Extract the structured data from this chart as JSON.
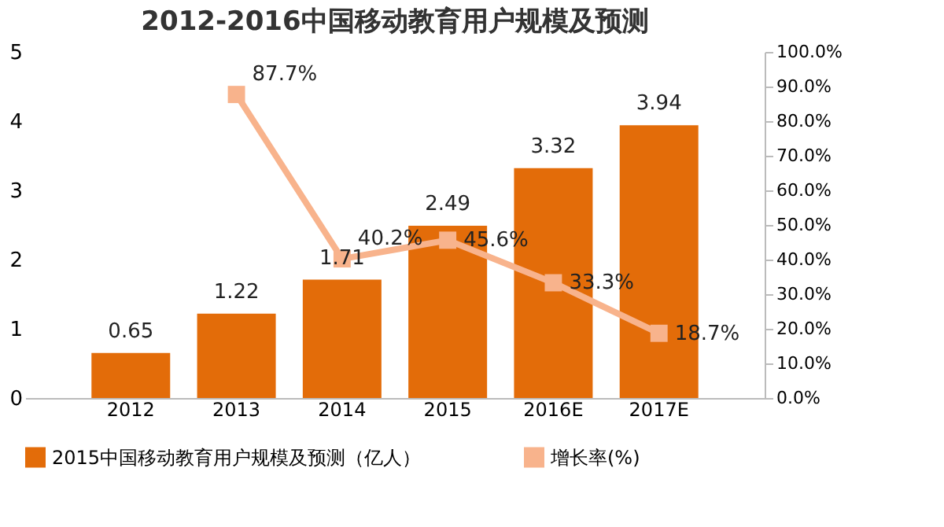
{
  "chart_data": {
    "type": "bar",
    "title": "2012-2016中国移动教育用户规模及预测",
    "categories": [
      "2012",
      "2013",
      "2014",
      "2015",
      "2016E",
      "2017E"
    ],
    "series": [
      {
        "name": "2015中国移动教育用户规模及预测（亿人）",
        "type": "bar",
        "color": "#e36c09",
        "values": [
          0.65,
          1.22,
          1.71,
          2.49,
          3.32,
          3.94
        ]
      },
      {
        "name": "增长率(%)",
        "type": "line",
        "axis": "y2",
        "color": "#f8b38c",
        "marker": "square",
        "values": [
          null,
          87.7,
          40.2,
          45.6,
          33.3,
          18.7
        ],
        "value_labels": [
          null,
          "87.7%",
          "40.2%",
          "45.6%",
          "33.3%",
          "18.7%"
        ]
      }
    ],
    "data_labels": true,
    "ylim": [
      0,
      5
    ],
    "yticks": [
      0,
      1,
      2,
      3,
      4,
      5
    ],
    "y2lim": [
      0,
      100
    ],
    "y2ticks": [
      {
        "value": 0,
        "label": "0.0%"
      },
      {
        "value": 10,
        "label": "10.0%"
      },
      {
        "value": 20,
        "label": "20.0%"
      },
      {
        "value": 30,
        "label": "30.0%"
      },
      {
        "value": 40,
        "label": "40.0%"
      },
      {
        "value": 50,
        "label": "50.0%"
      },
      {
        "value": 60,
        "label": "60.0%"
      },
      {
        "value": 70,
        "label": "70.0%"
      },
      {
        "value": 80,
        "label": "80.0%"
      },
      {
        "value": 90,
        "label": "90.0%"
      },
      {
        "value": 100,
        "label": "100.0%"
      }
    ],
    "grid": false,
    "legend": "bottom"
  }
}
